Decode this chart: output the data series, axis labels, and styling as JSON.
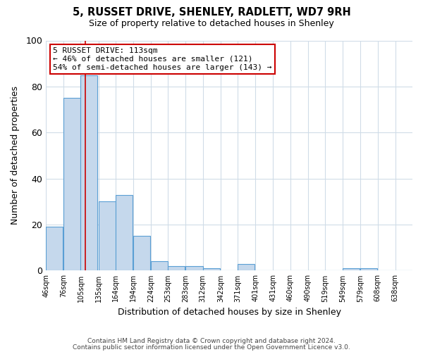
{
  "title": "5, RUSSET DRIVE, SHENLEY, RADLETT, WD7 9RH",
  "subtitle": "Size of property relative to detached houses in Shenley",
  "xlabel": "Distribution of detached houses by size in Shenley",
  "ylabel": "Number of detached properties",
  "bin_labels": [
    "46sqm",
    "76sqm",
    "105sqm",
    "135sqm",
    "164sqm",
    "194sqm",
    "224sqm",
    "253sqm",
    "283sqm",
    "312sqm",
    "342sqm",
    "371sqm",
    "401sqm",
    "431sqm",
    "460sqm",
    "490sqm",
    "519sqm",
    "549sqm",
    "579sqm",
    "608sqm",
    "638sqm"
  ],
  "bar_values": [
    19,
    75,
    85,
    30,
    33,
    15,
    4,
    2,
    2,
    1,
    0,
    3,
    0,
    0,
    0,
    0,
    0,
    1,
    1,
    0,
    0
  ],
  "bar_color": "#c5d8ec",
  "bar_edgecolor": "#5a9fd4",
  "redline_x": 113,
  "annotation_text": "5 RUSSET DRIVE: 113sqm\n← 46% of detached houses are smaller (121)\n54% of semi-detached houses are larger (143) →",
  "annotation_box_color": "#ffffff",
  "annotation_box_edgecolor": "#cc0000",
  "ylim": [
    0,
    100
  ],
  "yticks": [
    0,
    20,
    40,
    60,
    80,
    100
  ],
  "footer_line1": "Contains HM Land Registry data © Crown copyright and database right 2024.",
  "footer_line2": "Contains public sector information licensed under the Open Government Licence v3.0.",
  "background_color": "#ffffff",
  "grid_color": "#d0dce8",
  "bin_starts": [
    46,
    76,
    105,
    135,
    164,
    194,
    224,
    253,
    283,
    312,
    342,
    371,
    401,
    431,
    460,
    490,
    519,
    549,
    579,
    608,
    638
  ],
  "bin_width": 29
}
